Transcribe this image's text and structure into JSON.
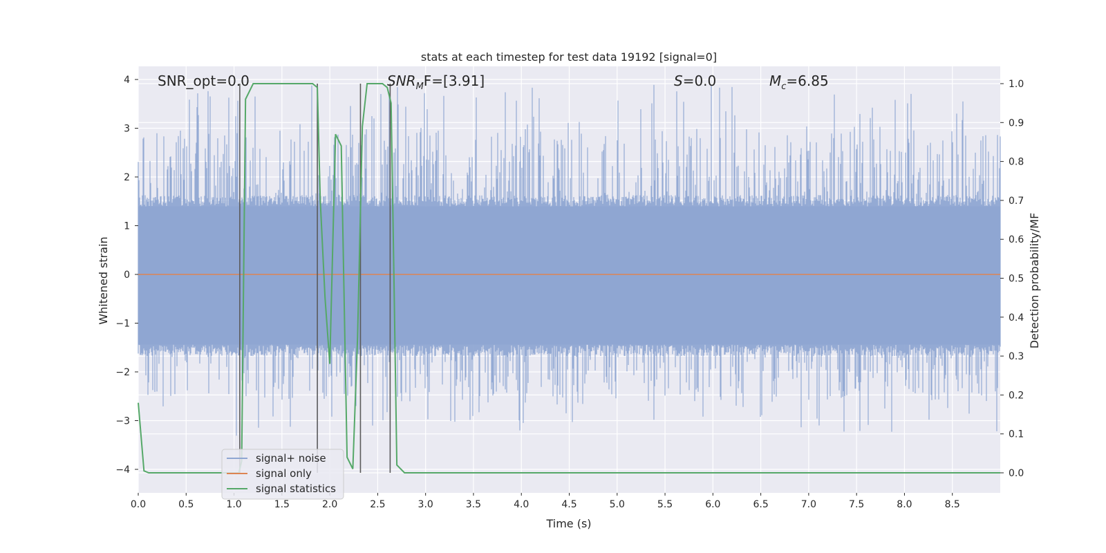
{
  "chart_data": {
    "type": "line",
    "title": "stats at each timestep for test data 19192 [signal=0]",
    "xlabel": "Time (s)",
    "ylabel_left": "Whitened strain",
    "ylabel_right": "Detection probability/MF",
    "xlim": [
      0.0,
      9.0
    ],
    "ylim_left": [
      -4.4,
      4.3
    ],
    "ylim_right": [
      -0.05,
      1.05
    ],
    "xticks": [
      "0.0",
      "0.5",
      "1.0",
      "1.5",
      "2.0",
      "2.5",
      "3.0",
      "3.5",
      "4.0",
      "4.5",
      "5.0",
      "5.5",
      "6.0",
      "6.5",
      "7.0",
      "7.5",
      "8.0",
      "8.5"
    ],
    "yticks_left": [
      "4",
      "3",
      "2",
      "1",
      "0",
      "−1",
      "−2",
      "−3",
      "−4"
    ],
    "yticks_right": [
      "1.0",
      "0.9",
      "0.8",
      "0.7",
      "0.6",
      "0.5",
      "0.4",
      "0.3",
      "0.2",
      "0.1",
      "0.0"
    ],
    "grid": true,
    "legend_position": "lower-left",
    "annotations": {
      "snr_opt": "SNR_opt=0.0",
      "snr_mf_italic": "SNR",
      "snr_mf_sub": "M",
      "snr_mf_rest": "F=[3.91]",
      "s_italic": "S",
      "s_rest": "=0.0",
      "mc_italic": "M",
      "mc_sub": "c",
      "mc_rest": "=6.85"
    },
    "series": [
      {
        "name": "signal+ noise",
        "color": "#8fa6d2",
        "axis": "left",
        "description_only": "noise band",
        "envelope": {
          "pos_typical": 1.55,
          "neg_typical": -1.6,
          "peak_max": 3.9,
          "peak_min": -3.3
        }
      },
      {
        "name": "signal only",
        "color": "#dd8452",
        "axis": "left",
        "x": [
          0.0,
          9.0
        ],
        "y": [
          0.0,
          0.0
        ]
      },
      {
        "name": "signal statistics",
        "color": "#55a868",
        "axis": "right",
        "x": [
          0.0,
          0.06,
          0.11,
          1.05,
          1.08,
          1.12,
          1.2,
          1.35,
          1.6,
          1.82,
          1.87,
          1.9,
          1.95,
          2.0,
          2.06,
          2.12,
          2.18,
          2.24,
          2.29,
          2.34,
          2.39,
          2.44,
          2.5,
          2.55,
          2.6,
          2.64,
          2.67,
          2.7,
          2.78,
          9.0
        ],
        "y": [
          0.18,
          0.005,
          0.0,
          0.0,
          0.03,
          0.96,
          1.0,
          1.0,
          1.0,
          1.0,
          0.99,
          0.7,
          0.45,
          0.28,
          0.87,
          0.84,
          0.04,
          0.01,
          0.35,
          0.89,
          1.0,
          1.0,
          1.0,
          1.0,
          0.99,
          0.95,
          0.5,
          0.02,
          0.0,
          0.0
        ]
      }
    ],
    "vlines": [
      1.06,
      1.87,
      2.32,
      2.63
    ],
    "vline_color": "#5a5a5a"
  }
}
